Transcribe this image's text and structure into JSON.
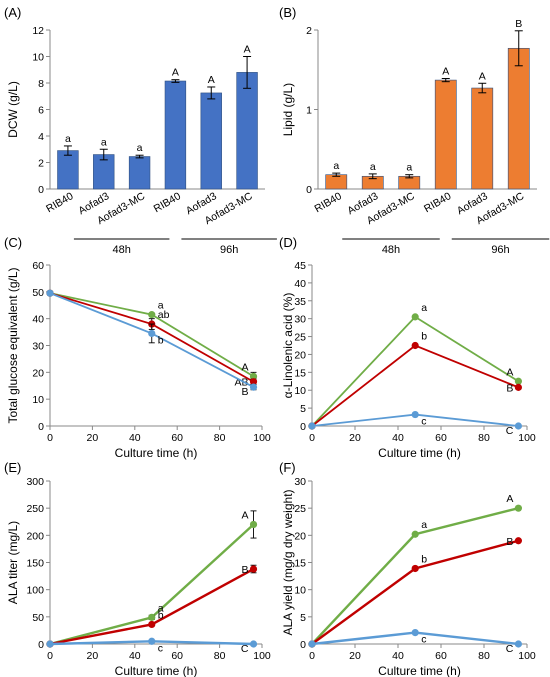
{
  "colors": {
    "blue_bar": "#4472C4",
    "orange_bar": "#ED7D31",
    "green": "#70AD47",
    "red": "#C00000",
    "lightblue": "#5B9BD5"
  },
  "chart_data": [
    {
      "panel": "(A)",
      "type": "bar",
      "ylabel": "DCW (g/L)",
      "ylim": [
        0,
        12
      ],
      "yticks": [
        0,
        2,
        4,
        6,
        8,
        10,
        12
      ],
      "categories": [
        "RIB40",
        "Aofad3",
        "Aofad3-MC",
        "RIB40",
        "Aofad3",
        "Aofad3-MC"
      ],
      "groups": [
        {
          "label": "48h",
          "from": 1,
          "to": 2
        },
        {
          "label": "96h",
          "from": 4,
          "to": 5
        }
      ],
      "values": [
        2.9,
        2.6,
        2.45,
        8.15,
        7.25,
        8.8
      ],
      "errors": [
        0.35,
        0.4,
        0.1,
        0.1,
        0.45,
        1.2
      ],
      "letters": [
        "a",
        "a",
        "a",
        "A",
        "A",
        "A"
      ],
      "color": "#4472C4"
    },
    {
      "panel": "(B)",
      "type": "bar",
      "ylabel": "Lipid (g/L)",
      "ylim": [
        0,
        2
      ],
      "yticks": [
        0,
        1,
        2
      ],
      "categories": [
        "RIB40",
        "Aofad3",
        "Aofad3-MC",
        "RIB40",
        "Aofad3",
        "Aofad3-MC"
      ],
      "groups": [
        {
          "label": "48h",
          "from": 1,
          "to": 2
        },
        {
          "label": "96h",
          "from": 4,
          "to": 5
        }
      ],
      "values": [
        0.18,
        0.16,
        0.16,
        1.37,
        1.27,
        1.77
      ],
      "errors": [
        0.02,
        0.03,
        0.02,
        0.02,
        0.06,
        0.22
      ],
      "letters": [
        "a",
        "a",
        "a",
        "A",
        "A",
        "B"
      ],
      "color": "#ED7D31"
    },
    {
      "panel": "(C)",
      "type": "line",
      "xlabel": "Culture time (h)",
      "ylabel": "Total glucose equivalent (g/L)",
      "xlim": [
        0,
        100
      ],
      "xticks": [
        0,
        20,
        40,
        60,
        80,
        100
      ],
      "ylim": [
        0,
        60
      ],
      "yticks": [
        0,
        10,
        20,
        30,
        40,
        50,
        60
      ],
      "x": [
        0,
        48,
        96
      ],
      "series": [
        {
          "color": "#70AD47",
          "values": [
            49.5,
            41.5,
            18.5
          ],
          "errors": [
            0,
            0.5,
            1.5
          ],
          "letters": [
            "",
            "a",
            "A"
          ]
        },
        {
          "color": "#C00000",
          "values": [
            49.5,
            38,
            16.5
          ],
          "errors": [
            0,
            2,
            1
          ],
          "letters": [
            "",
            "ab",
            "AB"
          ]
        },
        {
          "color": "#5B9BD5",
          "values": [
            49.5,
            34.5,
            14.5
          ],
          "errors": [
            0,
            3.5,
            1
          ],
          "letters": [
            "",
            "b",
            "B"
          ]
        }
      ]
    },
    {
      "panel": "(D)",
      "type": "line",
      "xlabel": "Culture time (h)",
      "ylabel": "α-Linolenic acid (%)",
      "xlim": [
        0,
        100
      ],
      "xticks": [
        0,
        20,
        40,
        60,
        80,
        100
      ],
      "ylim": [
        0,
        45
      ],
      "yticks": [
        0,
        5,
        10,
        15,
        20,
        25,
        30,
        35,
        40,
        45
      ],
      "x": [
        0,
        48,
        96
      ],
      "series": [
        {
          "color": "#70AD47",
          "values": [
            0,
            30.5,
            12.5
          ],
          "errors": [
            0,
            0,
            0
          ],
          "letters": [
            "",
            "a",
            "A"
          ]
        },
        {
          "color": "#C00000",
          "values": [
            0,
            22.5,
            10.8
          ],
          "errors": [
            0,
            0,
            0
          ],
          "letters": [
            "",
            "b",
            "B"
          ]
        },
        {
          "color": "#5B9BD5",
          "values": [
            0,
            3.2,
            0
          ],
          "errors": [
            0,
            0,
            0
          ],
          "letters": [
            "",
            "c",
            "C"
          ]
        }
      ]
    },
    {
      "panel": "(E)",
      "type": "line",
      "xlabel": "Culture time (h)",
      "ylabel": "ALA titer (mg/L)",
      "xlim": [
        0,
        100
      ],
      "xticks": [
        0,
        20,
        40,
        60,
        80,
        100
      ],
      "ylim": [
        0,
        300
      ],
      "yticks": [
        0,
        50,
        100,
        150,
        200,
        250,
        300
      ],
      "x": [
        0,
        48,
        96
      ],
      "series": [
        {
          "color": "#70AD47",
          "values": [
            0,
            49,
            220
          ],
          "errors": [
            0,
            4,
            25
          ],
          "letters": [
            "",
            "a",
            "A"
          ]
        },
        {
          "color": "#C00000",
          "values": [
            0,
            36,
            138
          ],
          "errors": [
            0,
            2,
            7
          ],
          "letters": [
            "",
            "b",
            "B"
          ]
        },
        {
          "color": "#5B9BD5",
          "values": [
            0,
            5,
            0
          ],
          "errors": [
            0,
            1,
            0
          ],
          "letters": [
            "",
            "c",
            "C"
          ]
        }
      ]
    },
    {
      "panel": "(F)",
      "type": "line",
      "xlabel": "Culture time (h)",
      "ylabel": "ALA yield (mg/g dry weight)",
      "xlim": [
        0,
        100
      ],
      "xticks": [
        0,
        20,
        40,
        60,
        80,
        100
      ],
      "ylim": [
        0,
        30
      ],
      "yticks": [
        0,
        5,
        10,
        15,
        20,
        25,
        30
      ],
      "x": [
        0,
        48,
        96
      ],
      "series": [
        {
          "color": "#70AD47",
          "values": [
            0,
            20.2,
            25
          ],
          "errors": [
            0,
            0,
            0
          ],
          "letters": [
            "",
            "a",
            "A"
          ]
        },
        {
          "color": "#C00000",
          "values": [
            0,
            13.9,
            19
          ],
          "errors": [
            0,
            0,
            0
          ],
          "letters": [
            "",
            "b",
            "B"
          ]
        },
        {
          "color": "#5B9BD5",
          "values": [
            0,
            2.1,
            0
          ],
          "errors": [
            0,
            0,
            0
          ],
          "letters": [
            "",
            "c",
            "C"
          ]
        }
      ]
    }
  ]
}
